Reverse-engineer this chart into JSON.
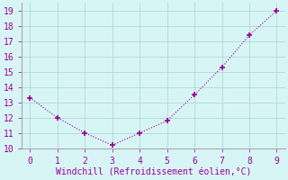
{
  "x": [
    0,
    1,
    2,
    3,
    4,
    5,
    6,
    7,
    8,
    9
  ],
  "y": [
    13.3,
    12.0,
    11.0,
    10.2,
    11.0,
    11.8,
    13.5,
    15.3,
    17.4,
    19.0
  ],
  "line_color": "#990099",
  "marker": "+",
  "marker_size": 5,
  "line_width": 0.8,
  "xlabel": "Windchill (Refroidissement éolien,°C)",
  "xlabel_color": "#990099",
  "xlabel_fontsize": 7,
  "background_color": "#d8f5f5",
  "grid_color": "#b0d8d8",
  "tick_label_color": "#990099",
  "tick_fontsize": 7,
  "xlim": [
    -0.3,
    9.3
  ],
  "ylim": [
    10,
    19.5
  ],
  "yticks": [
    10,
    11,
    12,
    13,
    14,
    15,
    16,
    17,
    18,
    19
  ],
  "xticks": [
    0,
    1,
    2,
    3,
    4,
    5,
    6,
    7,
    8,
    9
  ],
  "spine_color": "#aaaaaa"
}
